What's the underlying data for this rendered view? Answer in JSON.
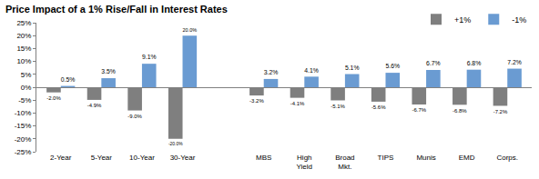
{
  "chart_data": {
    "type": "bar",
    "title": "Price Impact of a 1% Rise/Fall in Interest Rates",
    "categories": [
      "2-Year",
      "5-Year",
      "10-Year",
      "30-Year",
      null,
      "MBS",
      "High Yield",
      "Broad Mkt.",
      "TIPS",
      "Munis",
      "EMD",
      "Corps."
    ],
    "series": [
      {
        "name": "+1%",
        "color": "#7f7f7f",
        "values": [
          -2.0,
          -4.9,
          -9.0,
          -20.0,
          null,
          -3.2,
          -4.1,
          -5.1,
          -5.6,
          -6.7,
          -6.8,
          -7.2
        ],
        "value_labels": [
          "-2.0%",
          "-4.9%",
          "-9.0%",
          "-20.0%",
          null,
          "-3.2%",
          "-4.1%",
          "-5.1%",
          "-5.6%",
          "-6.7%",
          "-6.8%",
          "-7.2%"
        ]
      },
      {
        "name": "-1%",
        "color": "#6a9bd2",
        "values": [
          0.5,
          3.5,
          9.1,
          20.0,
          null,
          3.2,
          4.1,
          5.1,
          5.6,
          6.7,
          6.8,
          7.2
        ],
        "value_labels": [
          "0.5%",
          "3.5%",
          "9.1%",
          "20.0%",
          null,
          "3.2%",
          "4.1%",
          "5.1%",
          "5.6%",
          "6.7%",
          "6.8%",
          "7.2%"
        ]
      }
    ],
    "ylim": [
      -25,
      25
    ],
    "yticks": [
      {
        "value": -25,
        "label": "-25%"
      },
      {
        "value": -20,
        "label": "-20%"
      },
      {
        "value": -15,
        "label": "-15%"
      },
      {
        "value": -10,
        "label": "-10%"
      },
      {
        "value": -5,
        "label": "-5%"
      },
      {
        "value": 0,
        "label": "0%"
      },
      {
        "value": 5,
        "label": "5%"
      },
      {
        "value": 10,
        "label": "10%"
      },
      {
        "value": 15,
        "label": "15%"
      },
      {
        "value": 20,
        "label": "20%"
      },
      {
        "value": 25,
        "label": "25%"
      }
    ],
    "grid": false,
    "legend": "top right",
    "data_labels": true
  }
}
